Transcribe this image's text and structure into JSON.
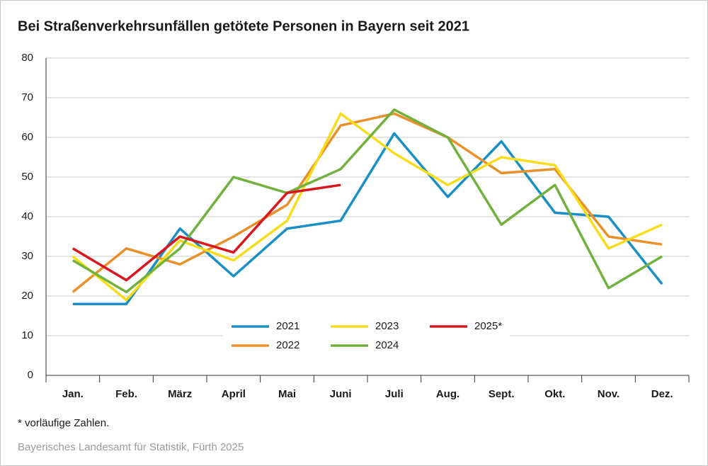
{
  "chart_data": {
    "type": "line",
    "title": "Bei Straßenverkehrsunfällen getötete Personen in Bayern seit 2021",
    "categories": [
      "Jan.",
      "Feb.",
      "März",
      "April",
      "Mai",
      "Juni",
      "Juli",
      "Aug.",
      "Sept.",
      "Okt.",
      "Nov.",
      "Dez."
    ],
    "series": [
      {
        "name": "2021",
        "color": "#1a8fc6",
        "values": [
          18,
          18,
          37,
          25,
          37,
          39,
          61,
          45,
          59,
          41,
          40,
          23
        ]
      },
      {
        "name": "2022",
        "color": "#e8902a",
        "values": [
          21,
          32,
          28,
          35,
          43,
          63,
          66,
          60,
          51,
          52,
          35,
          33
        ]
      },
      {
        "name": "2023",
        "color": "#f7dc1b",
        "values": [
          30,
          19,
          34,
          29,
          39,
          66,
          56,
          48,
          55,
          53,
          32,
          38
        ]
      },
      {
        "name": "2024",
        "color": "#72b13e",
        "values": [
          29,
          21,
          32,
          50,
          46,
          52,
          67,
          60,
          38,
          48,
          22,
          30
        ]
      },
      {
        "name": "2025*",
        "color": "#d7161e",
        "values": [
          32,
          24,
          35,
          31,
          46,
          48,
          null,
          null,
          null,
          null,
          null,
          null
        ]
      }
    ],
    "ylim": [
      0,
      80
    ],
    "yticks": [
      0,
      10,
      20,
      30,
      40,
      50,
      60,
      70,
      80
    ],
    "grid": true,
    "footnote": "* vorläufige Zahlen.",
    "source": "Bayerisches Landesamt für Statistik, Fürth 2025"
  }
}
